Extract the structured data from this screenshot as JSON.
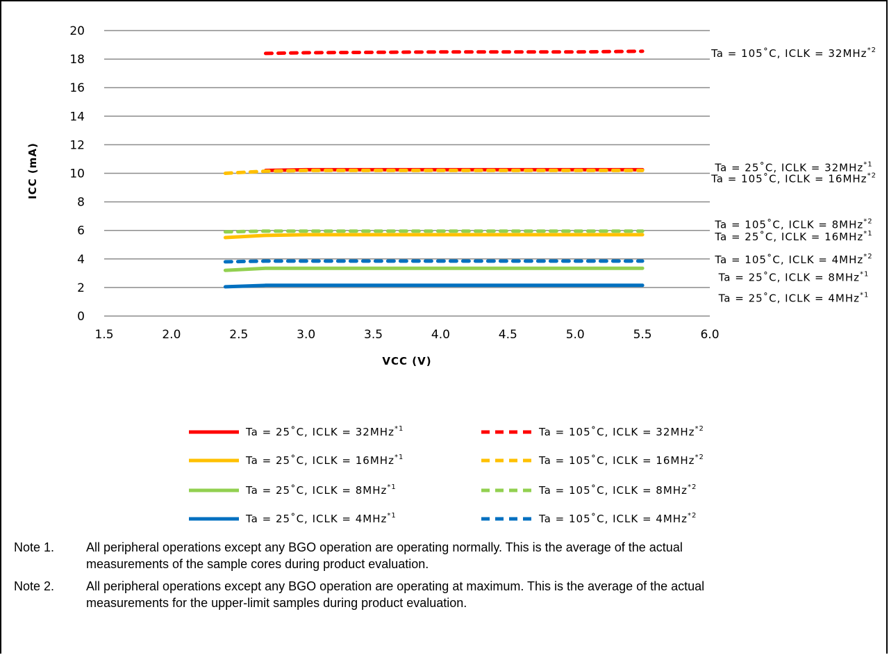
{
  "chart_data": {
    "type": "line",
    "xlabel": "VCC (V)",
    "ylabel": "ICC (mA)",
    "xlim": [
      1.5,
      6.0
    ],
    "ylim": [
      0,
      20
    ],
    "x_ticks": [
      "1.5",
      "2.0",
      "2.5",
      "3.0",
      "3.5",
      "4.0",
      "4.5",
      "5.0",
      "5.5",
      "6.0"
    ],
    "y_ticks": [
      "0",
      "2",
      "4",
      "6",
      "8",
      "10",
      "12",
      "14",
      "16",
      "18",
      "20"
    ],
    "grid": "horizontal",
    "legend": "bottom",
    "series": [
      {
        "name": "Ta = 25˚C, ICLK = 32MHz",
        "sup": "*1",
        "color": "#ff0000",
        "style": "solid",
        "x": [
          2.7,
          3.0,
          4.0,
          5.0,
          5.5
        ],
        "y": [
          10.2,
          10.25,
          10.25,
          10.25,
          10.25
        ]
      },
      {
        "name": "Ta = 25˚C, ICLK = 16MHz",
        "sup": "*1",
        "color": "#ffc000",
        "style": "solid",
        "x": [
          2.4,
          2.7,
          3.0,
          4.0,
          5.0,
          5.5
        ],
        "y": [
          5.5,
          5.65,
          5.7,
          5.7,
          5.7,
          5.7
        ]
      },
      {
        "name": "Ta = 25˚C, ICLK = 8MHz",
        "sup": "*1",
        "color": "#92d050",
        "style": "solid",
        "x": [
          2.4,
          2.7,
          3.0,
          4.0,
          5.0,
          5.5
        ],
        "y": [
          3.2,
          3.35,
          3.35,
          3.35,
          3.35,
          3.35
        ]
      },
      {
        "name": "Ta = 25˚C, ICLK = 4MHz",
        "sup": "*1",
        "color": "#0070c0",
        "style": "solid",
        "x": [
          2.4,
          2.7,
          3.0,
          4.0,
          5.0,
          5.5
        ],
        "y": [
          2.05,
          2.15,
          2.15,
          2.15,
          2.15,
          2.15
        ]
      },
      {
        "name": "Ta = 105˚C, ICLK = 32MHz",
        "sup": "*2",
        "color": "#ff0000",
        "style": "dashed",
        "x": [
          2.7,
          3.0,
          4.0,
          5.0,
          5.5
        ],
        "y": [
          18.4,
          18.45,
          18.5,
          18.5,
          18.55
        ]
      },
      {
        "name": "Ta = 105˚C, ICLK = 16MHz",
        "sup": "*2",
        "color": "#ffc000",
        "style": "dashed",
        "x": [
          2.4,
          2.7,
          3.0,
          4.0,
          5.0,
          5.5
        ],
        "y": [
          10.0,
          10.15,
          10.2,
          10.2,
          10.2,
          10.2
        ]
      },
      {
        "name": "Ta = 105˚C, ICLK = 8MHz",
        "sup": "*2",
        "color": "#92d050",
        "style": "dashed",
        "x": [
          2.4,
          2.7,
          3.0,
          4.0,
          5.0,
          5.5
        ],
        "y": [
          5.9,
          5.95,
          5.95,
          5.95,
          5.95,
          5.95
        ]
      },
      {
        "name": "Ta = 105˚C, ICLK = 4MHz",
        "sup": "*2",
        "color": "#0070c0",
        "style": "dashed",
        "x": [
          2.4,
          2.7,
          3.0,
          4.0,
          5.0,
          5.5
        ],
        "y": [
          3.8,
          3.85,
          3.85,
          3.85,
          3.85,
          3.85
        ]
      }
    ],
    "annotations": [
      {
        "text": "Ta = 105˚C, ICLK = 32MHz",
        "sup": "*2",
        "y": 18.4
      },
      {
        "text": "Ta = 25˚C, ICLK = 32MHz",
        "sup": "*1",
        "y": 10.4
      },
      {
        "text": "Ta = 105˚C, ICLK = 16MHz",
        "sup": "*2",
        "y": 9.6
      },
      {
        "text": "Ta = 105˚C, ICLK = 8MHz",
        "sup": "*2",
        "y": 6.4
      },
      {
        "text": "Ta = 25˚C, ICLK = 16MHz",
        "sup": "*1",
        "y": 5.55
      },
      {
        "text": "Ta = 105˚C, ICLK = 4MHz",
        "sup": "*2",
        "y": 3.95
      },
      {
        "text": "Ta = 25˚C, ICLK = 8MHz",
        "sup": "*1",
        "y": 2.7
      },
      {
        "text": "Ta = 25˚C, ICLK = 4MHz",
        "sup": "*1",
        "y": 1.25
      }
    ],
    "legend_order": [
      0,
      4,
      1,
      5,
      2,
      6,
      3,
      7
    ]
  },
  "notes": [
    {
      "label": "Note 1.",
      "text": "All peripheral operations except any BGO operation are operating normally. This is the average of the actual measurements of the sample cores during product evaluation."
    },
    {
      "label": "Note 2.",
      "text": "All peripheral operations except any BGO operation are operating at maximum. This is the average of the actual measurements for the upper-limit samples during product evaluation."
    }
  ]
}
